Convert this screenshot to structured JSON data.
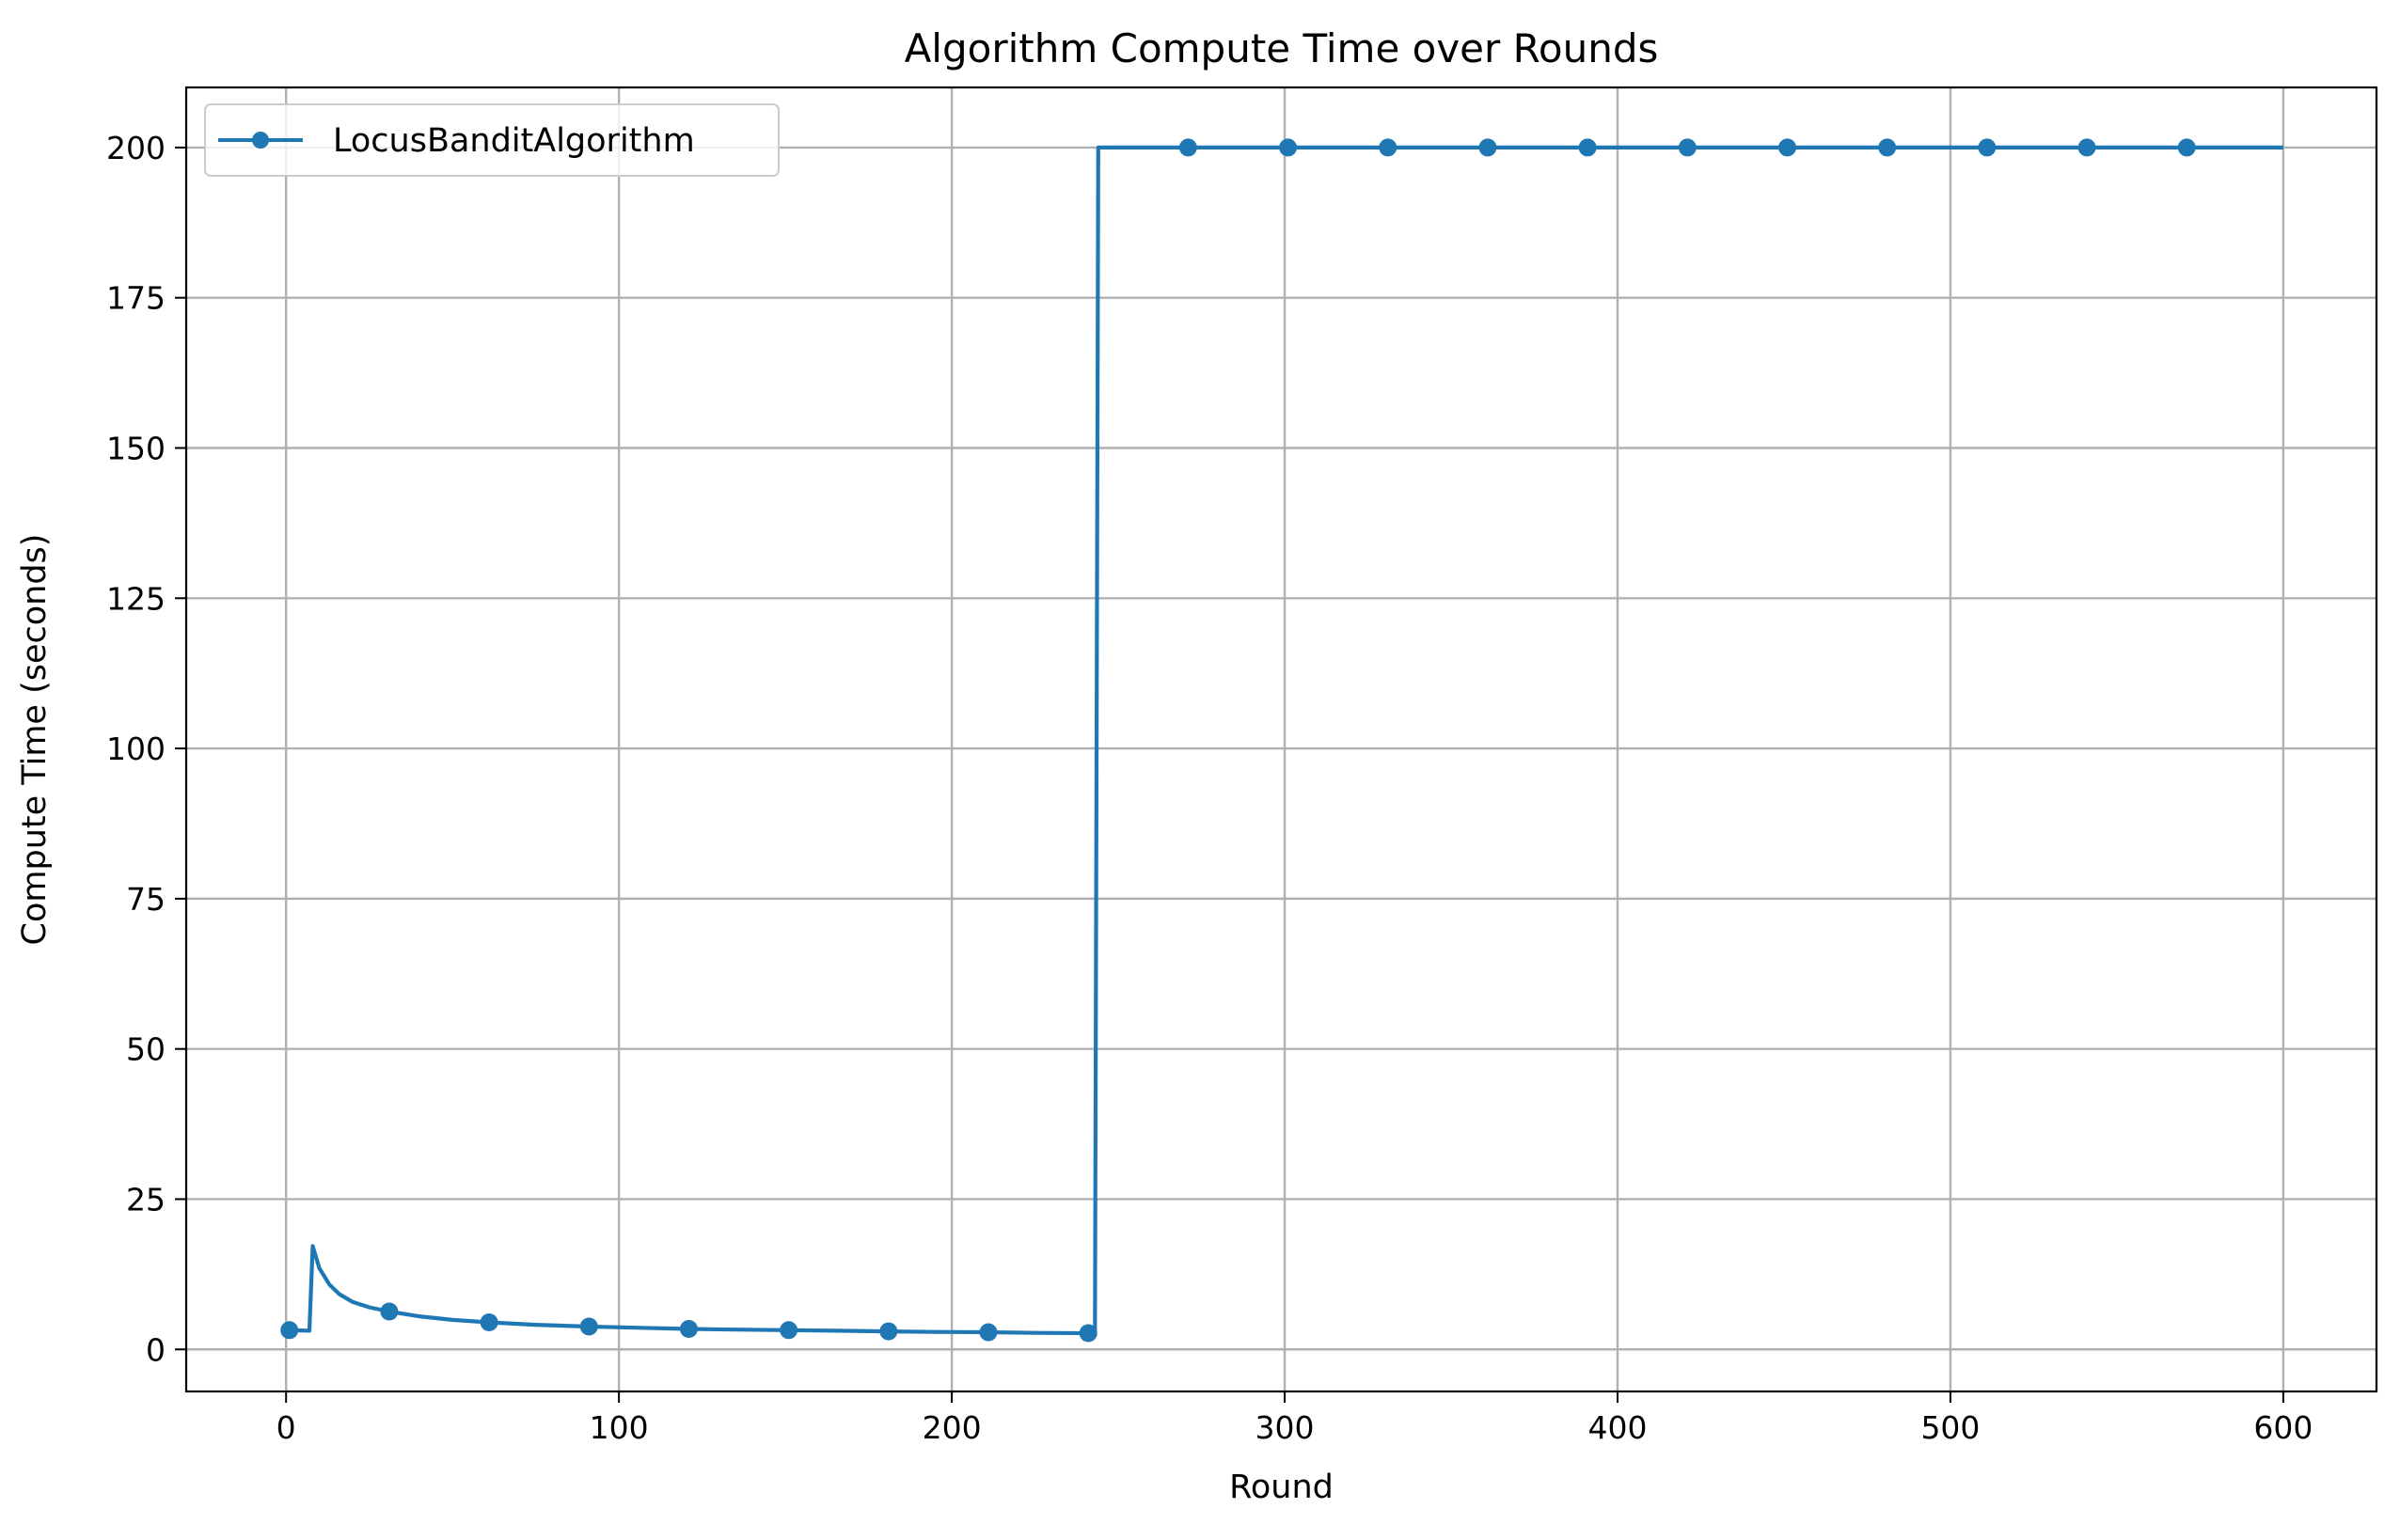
{
  "chart_data": {
    "type": "line",
    "title": "Algorithm Compute Time over Rounds",
    "xlabel": "Round",
    "ylabel": "Compute Time (seconds)",
    "xlim": [
      -30,
      628
    ],
    "ylim": [
      -7,
      210
    ],
    "x_ticks": [
      0,
      100,
      200,
      300,
      400,
      500,
      600
    ],
    "x_tick_labels": [
      "0",
      "100",
      "200",
      "300",
      "400",
      "500",
      "600"
    ],
    "y_ticks": [
      0,
      25,
      50,
      75,
      100,
      125,
      150,
      175,
      200
    ],
    "y_tick_labels": [
      "0",
      "25",
      "50",
      "75",
      "100",
      "125",
      "150",
      "175",
      "200"
    ],
    "grid": true,
    "legend_position": "top-left",
    "series": [
      {
        "name": "LocusBanditAlgorithm",
        "color": "#1f77b4",
        "marker": "circle",
        "x": [
          1,
          7,
          8,
          10,
          13,
          16,
          20,
          25,
          31,
          40,
          50,
          61,
          75,
          91,
          105,
          121,
          135,
          151,
          165,
          181,
          195,
          211,
          225,
          241,
          243,
          244,
          271,
          301,
          331,
          361,
          391,
          421,
          451,
          481,
          511,
          541,
          571,
          600
        ],
        "y": [
          3.2,
          3.1,
          17.2,
          13.5,
          10.8,
          9.2,
          7.9,
          7.0,
          6.3,
          5.5,
          4.9,
          4.5,
          4.1,
          3.8,
          3.6,
          3.4,
          3.3,
          3.2,
          3.1,
          3.0,
          2.9,
          2.85,
          2.75,
          2.7,
          2.7,
          200,
          200,
          200,
          200,
          200,
          200,
          200,
          200,
          200,
          200,
          200,
          200,
          200
        ],
        "marker_x": [
          1,
          31,
          61,
          91,
          121,
          151,
          181,
          211,
          241,
          271,
          301,
          331,
          361,
          391,
          421,
          451,
          481,
          511,
          541,
          571
        ],
        "marker_y": [
          3.2,
          6.3,
          4.5,
          3.8,
          3.4,
          3.2,
          3.0,
          2.85,
          2.7,
          200,
          200,
          200,
          200,
          200,
          200,
          200,
          200,
          200,
          200,
          200
        ]
      }
    ]
  }
}
